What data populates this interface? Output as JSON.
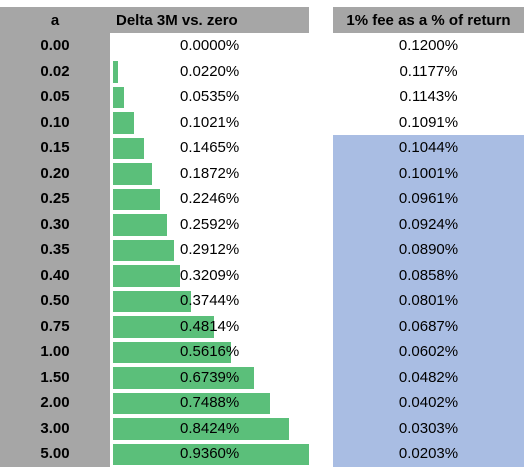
{
  "headers": {
    "a": "a",
    "delta": "Delta 3M vs. zero",
    "fee": "1% fee as a % of return"
  },
  "colors": {
    "header_bg": "#a6a6a6",
    "bar": "#5bbf7a",
    "highlight": "#a9bde3"
  },
  "delta_scale_max": 0.936,
  "highlight_from_row": 4,
  "rows": [
    {
      "a": "0.00",
      "delta": "0.0000%",
      "delta_value": 0.0,
      "fee": "0.1200%"
    },
    {
      "a": "0.02",
      "delta": "0.0220%",
      "delta_value": 0.022,
      "fee": "0.1177%"
    },
    {
      "a": "0.05",
      "delta": "0.0535%",
      "delta_value": 0.0535,
      "fee": "0.1143%"
    },
    {
      "a": "0.10",
      "delta": "0.1021%",
      "delta_value": 0.1021,
      "fee": "0.1091%"
    },
    {
      "a": "0.15",
      "delta": "0.1465%",
      "delta_value": 0.1465,
      "fee": "0.1044%"
    },
    {
      "a": "0.20",
      "delta": "0.1872%",
      "delta_value": 0.1872,
      "fee": "0.1001%"
    },
    {
      "a": "0.25",
      "delta": "0.2246%",
      "delta_value": 0.2246,
      "fee": "0.0961%"
    },
    {
      "a": "0.30",
      "delta": "0.2592%",
      "delta_value": 0.2592,
      "fee": "0.0924%"
    },
    {
      "a": "0.35",
      "delta": "0.2912%",
      "delta_value": 0.2912,
      "fee": "0.0890%"
    },
    {
      "a": "0.40",
      "delta": "0.3209%",
      "delta_value": 0.3209,
      "fee": "0.0858%"
    },
    {
      "a": "0.50",
      "delta": "0.3744%",
      "delta_value": 0.3744,
      "fee": "0.0801%"
    },
    {
      "a": "0.75",
      "delta": "0.4814%",
      "delta_value": 0.4814,
      "fee": "0.0687%"
    },
    {
      "a": "1.00",
      "delta": "0.5616%",
      "delta_value": 0.5616,
      "fee": "0.0602%"
    },
    {
      "a": "1.50",
      "delta": "0.6739%",
      "delta_value": 0.6739,
      "fee": "0.0482%"
    },
    {
      "a": "2.00",
      "delta": "0.7488%",
      "delta_value": 0.7488,
      "fee": "0.0402%"
    },
    {
      "a": "3.00",
      "delta": "0.8424%",
      "delta_value": 0.8424,
      "fee": "0.0303%"
    },
    {
      "a": "5.00",
      "delta": "0.9360%",
      "delta_value": 0.936,
      "fee": "0.0203%"
    }
  ]
}
